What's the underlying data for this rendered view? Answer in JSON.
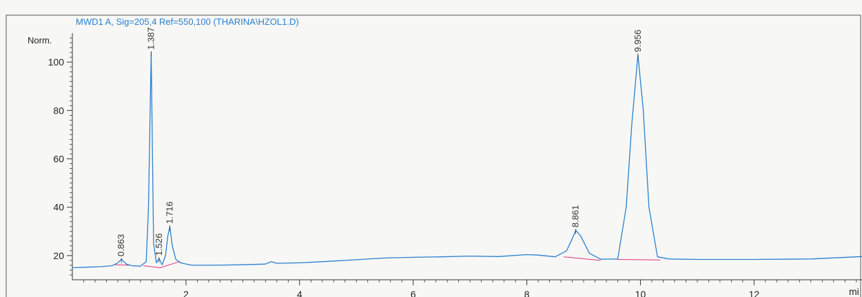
{
  "chart_data": {
    "type": "line",
    "title": "MWD1 A, Sig=205,4 Ref=550,100 (THARINA\\HZOL1.D)",
    "ylabel": "Norm.",
    "xlabel": "mi",
    "xlim": [
      0,
      13.9
    ],
    "ylim": [
      10,
      112
    ],
    "x_ticks": [
      2,
      4,
      6,
      8,
      10,
      12
    ],
    "y_ticks": [
      20,
      40,
      60,
      80,
      100
    ],
    "grid": false,
    "colors": {
      "signal": "#2a7fd0",
      "baseline": "#e0307a",
      "title": "#2a7fd0",
      "axis": "#333333"
    },
    "baseline_segments": [
      [
        [
          0.75,
          16.2
        ],
        [
          1.0,
          16.0
        ]
      ],
      [
        [
          1.25,
          15.8
        ],
        [
          1.55,
          15.0
        ],
        [
          1.9,
          17.6
        ]
      ],
      [
        [
          8.65,
          19.5
        ],
        [
          9.3,
          18.0
        ]
      ],
      [
        [
          9.6,
          18.4
        ],
        [
          10.35,
          18.2
        ]
      ]
    ],
    "peaks": [
      {
        "rt": "0.863",
        "x": 0.863,
        "h": 18.5
      },
      {
        "rt": "1.387",
        "x": 1.387,
        "h": 104
      },
      {
        "rt": "1.526",
        "x": 1.526,
        "h": 18.8
      },
      {
        "rt": "1.716",
        "x": 1.716,
        "h": 32
      },
      {
        "rt": "8.861",
        "x": 8.861,
        "h": 30.5
      },
      {
        "rt": "9.956",
        "x": 9.956,
        "h": 103
      }
    ],
    "series": [
      {
        "x": [
          0,
          0.5,
          0.7,
          0.8,
          0.863,
          0.95,
          1.05,
          1.2,
          1.3,
          1.34,
          1.387,
          1.43,
          1.48,
          1.526,
          1.58,
          1.64,
          1.68,
          1.716,
          1.76,
          1.82,
          1.9,
          2.1,
          2.5,
          3.0,
          3.4,
          3.5,
          3.6,
          4.0,
          4.5,
          5.0,
          5.5,
          6.0,
          6.5,
          7.0,
          7.5,
          8.0,
          8.2,
          8.5,
          8.7,
          8.8,
          8.861,
          8.95,
          9.1,
          9.3,
          9.6,
          9.75,
          9.85,
          9.956,
          10.05,
          10.15,
          10.3,
          10.5,
          11.0,
          12.0,
          13.0,
          13.9
        ],
        "y": [
          15.0,
          15.4,
          15.8,
          17.0,
          18.5,
          16.5,
          15.8,
          15.6,
          17.5,
          40.0,
          104.0,
          25.0,
          17.0,
          18.8,
          16.2,
          20.0,
          28.0,
          32.0,
          24.0,
          18.5,
          17.0,
          16.0,
          16.0,
          16.2,
          16.5,
          17.5,
          16.8,
          17.0,
          17.6,
          18.3,
          19.0,
          19.3,
          19.5,
          19.8,
          19.6,
          20.4,
          20.2,
          19.5,
          22.0,
          27.0,
          30.5,
          28.0,
          21.0,
          18.5,
          18.6,
          40.0,
          75.0,
          103.0,
          80.0,
          40.0,
          19.5,
          18.6,
          18.4,
          18.4,
          18.6,
          19.6
        ]
      }
    ]
  }
}
